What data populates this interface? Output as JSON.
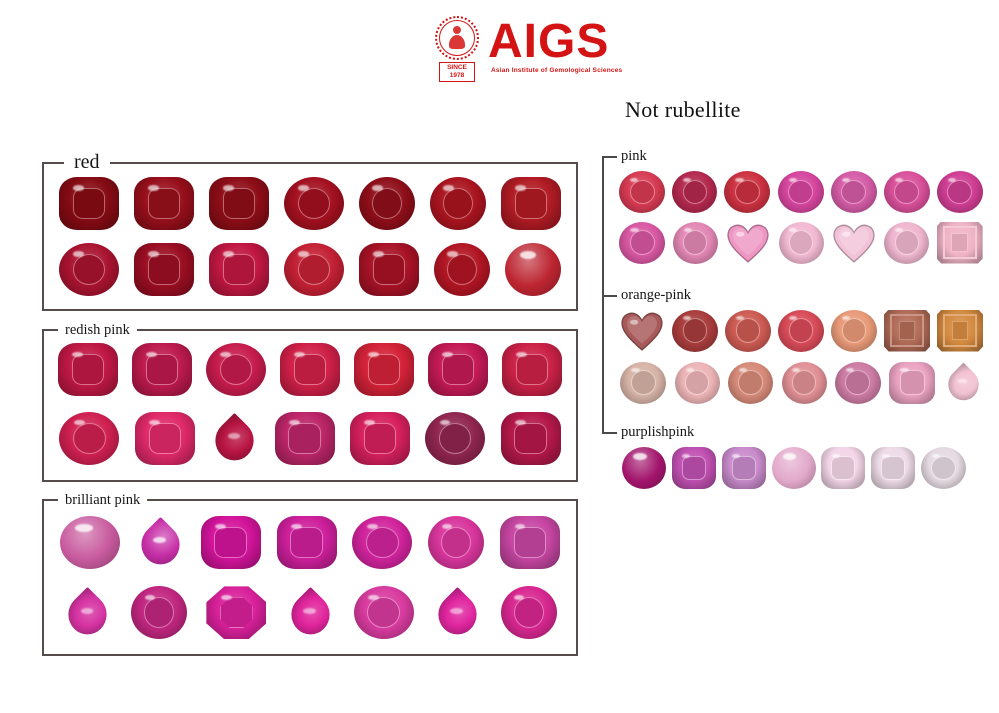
{
  "logo": {
    "brand": "AIGS",
    "tagline": "Asian Institute of Gemological Sciences",
    "since_line1": "SINCE",
    "since_line2": "1978"
  },
  "right_header": "Not rubellite",
  "colors": {
    "brand_red": "#d41414",
    "box_border": "#574c4c",
    "bracket": "#4a4a4a",
    "label_text": "#161616"
  },
  "left_groups": [
    {
      "label": "red",
      "rows": [
        [
          {
            "shape": "cushion",
            "color": "#860b14"
          },
          {
            "shape": "cushion",
            "color": "#970f1b"
          },
          {
            "shape": "cushion",
            "color": "#8e0d17"
          },
          {
            "shape": "oval",
            "color": "#a31020"
          },
          {
            "shape": "round",
            "color": "#8e0e19"
          },
          {
            "shape": "round",
            "color": "#a9141f"
          },
          {
            "shape": "cushion",
            "color": "#b11b24"
          }
        ],
        [
          {
            "shape": "oval",
            "color": "#a91330"
          },
          {
            "shape": "cushion",
            "color": "#9b0e22"
          },
          {
            "shape": "cushion",
            "color": "#c01741"
          },
          {
            "shape": "oval",
            "color": "#c32034"
          },
          {
            "shape": "cushion",
            "color": "#a81226"
          },
          {
            "shape": "round",
            "color": "#b11523"
          },
          {
            "shape": "cab-round",
            "color": "#bc2531"
          }
        ]
      ]
    },
    {
      "label": "redish pink",
      "rows": [
        [
          {
            "shape": "cushion",
            "color": "#c01845"
          },
          {
            "shape": "cushion",
            "color": "#bd1a4e"
          },
          {
            "shape": "oval",
            "color": "#c61b4d"
          },
          {
            "shape": "cushion",
            "color": "#d02048"
          },
          {
            "shape": "cushion",
            "color": "#d42238"
          },
          {
            "shape": "cushion",
            "color": "#c41a55"
          },
          {
            "shape": "cushion",
            "color": "#cb2147"
          }
        ],
        [
          {
            "shape": "oval",
            "color": "#cf2050"
          },
          {
            "shape": "cushion",
            "color": "#e02968"
          },
          {
            "shape": "pear",
            "color": "#b91543"
          },
          {
            "shape": "cushion",
            "color": "#bc2568"
          },
          {
            "shape": "cushion",
            "color": "#d6205e"
          },
          {
            "shape": "oval",
            "color": "#8f2550"
          },
          {
            "shape": "cushion",
            "color": "#b5184a"
          }
        ]
      ]
    },
    {
      "label": "brilliant pink",
      "rows": [
        [
          {
            "shape": "cab-oval",
            "color": "#c85a9e"
          },
          {
            "shape": "cab-pear",
            "color": "#c62ea6"
          },
          {
            "shape": "cushion",
            "color": "#d3149b"
          },
          {
            "shape": "cushion",
            "color": "#cf1f9c"
          },
          {
            "shape": "oval",
            "color": "#d0239c"
          },
          {
            "shape": "round",
            "color": "#d8359c"
          },
          {
            "shape": "cushion",
            "color": "#c746a3"
          }
        ],
        [
          {
            "shape": "pear",
            "color": "#d633a2"
          },
          {
            "shape": "round",
            "color": "#c0267f"
          },
          {
            "shape": "octagon",
            "color": "#d8209a"
          },
          {
            "shape": "pear",
            "color": "#e0249c"
          },
          {
            "shape": "oval",
            "color": "#d83b9f"
          },
          {
            "shape": "pear",
            "color": "#e0259f"
          },
          {
            "shape": "round",
            "color": "#d82790"
          }
        ]
      ]
    }
  ],
  "right_groups": [
    {
      "label": "pink",
      "rows": [
        [
          {
            "shape": "oval",
            "color": "#d63a52"
          },
          {
            "shape": "round",
            "color": "#b3284f"
          },
          {
            "shape": "oval",
            "color": "#cc3140"
          },
          {
            "shape": "oval",
            "color": "#d6459e"
          },
          {
            "shape": "oval",
            "color": "#d45ba6"
          },
          {
            "shape": "oval",
            "color": "#d94f9a"
          },
          {
            "shape": "oval",
            "color": "#cf3d93"
          }
        ],
        [
          {
            "shape": "oval",
            "color": "#d857a2"
          },
          {
            "shape": "round",
            "color": "#e287b4"
          },
          {
            "shape": "heart",
            "color": "#ee97c4"
          },
          {
            "shape": "round",
            "color": "#f2b9d2"
          },
          {
            "shape": "heart",
            "color": "#f2c3d8"
          },
          {
            "shape": "round",
            "color": "#efb6cf"
          },
          {
            "shape": "emerald",
            "color": "#f0b3c6"
          }
        ]
      ]
    },
    {
      "label": "orange-pink",
      "rows": [
        [
          {
            "shape": "heart",
            "color": "#a85a5a"
          },
          {
            "shape": "oval",
            "color": "#a83c3c"
          },
          {
            "shape": "oval",
            "color": "#cc5a52"
          },
          {
            "shape": "oval",
            "color": "#d84a58"
          },
          {
            "shape": "oval",
            "color": "#e89a78"
          },
          {
            "shape": "emerald",
            "color": "#b06a55"
          },
          {
            "shape": "emerald",
            "color": "#d3893f"
          }
        ],
        [
          {
            "shape": "oval",
            "color": "#d6b3a6"
          },
          {
            "shape": "round",
            "color": "#ecb4b6"
          },
          {
            "shape": "round",
            "color": "#d68a78"
          },
          {
            "shape": "round",
            "color": "#e09095"
          },
          {
            "shape": "oval",
            "color": "#cc7ba3"
          },
          {
            "shape": "cushion",
            "color": "#eba2c2"
          },
          {
            "shape": "pear",
            "color": "#f2c2d2"
          }
        ]
      ]
    },
    {
      "label": "purplishpink",
      "rows": [
        [
          {
            "shape": "cab-oval",
            "color": "#a2156c"
          },
          {
            "shape": "cushion",
            "color": "#c050b2"
          },
          {
            "shape": "cushion",
            "color": "#c98bcc"
          },
          {
            "shape": "cab-oval",
            "color": "#e2a8ca"
          },
          {
            "shape": "cushion",
            "color": "#f3d5e7"
          },
          {
            "shape": "cushion",
            "color": "#eddbe7"
          },
          {
            "shape": "round",
            "color": "#e5dae1"
          }
        ]
      ]
    }
  ]
}
